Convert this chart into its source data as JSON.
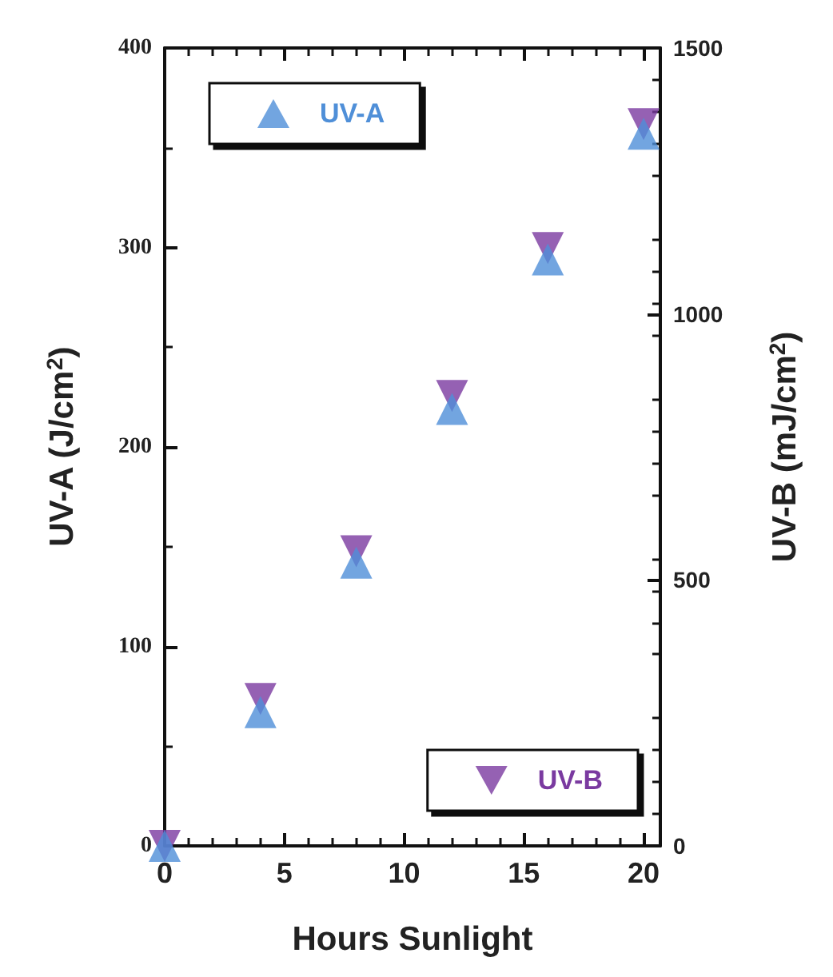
{
  "chart_data": {
    "type": "scatter",
    "xlabel": "Hours Sunlight",
    "ylabel": "UV-A (J/cm$^{2}$)",
    "y2label": "UV-B (mJ/cm$^{2}$)",
    "x": [
      0,
      4,
      8,
      12,
      16,
      20
    ],
    "xlim": [
      0,
      20.7
    ],
    "xticks": [
      0,
      5,
      10,
      15,
      20
    ],
    "ylim": [
      0,
      400
    ],
    "yticks": [
      0,
      100,
      200,
      300,
      400
    ],
    "y2lim": [
      0,
      1500
    ],
    "y2ticks": [
      0,
      500,
      1000,
      1500
    ],
    "legend": [
      "top left",
      "bottom right"
    ],
    "grid": false,
    "series": [
      {
        "name": "UV-A",
        "color": "#4f8fd8",
        "marker": "triangle",
        "values": [
          0,
          67,
          142,
          219,
          294,
          357
        ]
      },
      {
        "name": "UV-B",
        "color": "#7a3aa0",
        "marker": "triangle-down",
        "axis": "y2",
        "values": [
          0,
          276,
          554,
          846,
          1124,
          1357
        ]
      }
    ]
  }
}
